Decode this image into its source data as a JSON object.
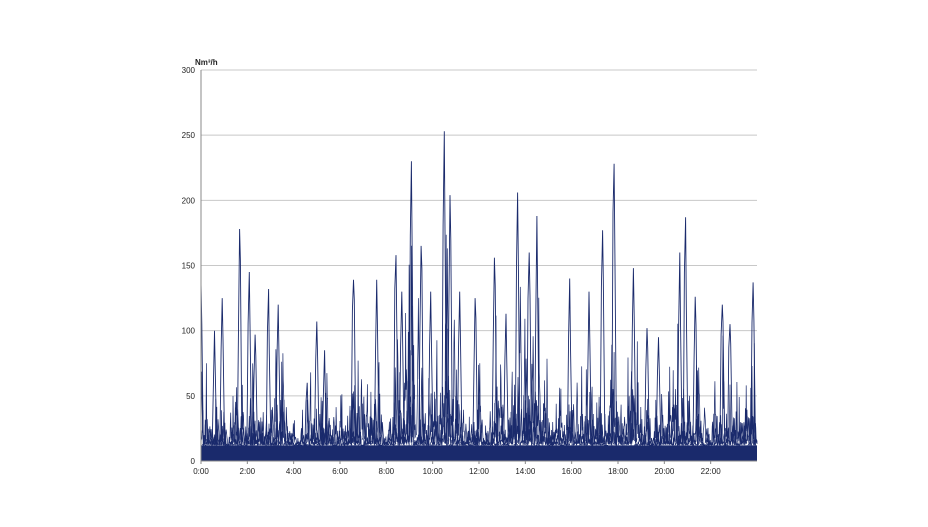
{
  "chart_data": {
    "type": "line",
    "title": "",
    "ylabel": "Nm³/h",
    "xlabel": "",
    "ylim": [
      0,
      300
    ],
    "xlim": [
      "0:00",
      "24:00"
    ],
    "y_ticks": [
      "0",
      "50",
      "100",
      "150",
      "200",
      "250",
      "300"
    ],
    "x_ticks": [
      "0:00",
      "2:00",
      "4:00",
      "6:00",
      "8:00",
      "10:00",
      "12:00",
      "14:00",
      "16:00",
      "18:00",
      "20:00",
      "22:00"
    ],
    "grid": "horizontal",
    "legend": "none",
    "line_color": "#1a2a6c",
    "baseline_band": [
      0,
      12
    ],
    "peaks": [
      {
        "x": "0:00",
        "y": 137
      },
      {
        "x": "0:35",
        "y": 100
      },
      {
        "x": "0:55",
        "y": 125
      },
      {
        "x": "1:40",
        "y": 178
      },
      {
        "x": "2:05",
        "y": 145
      },
      {
        "x": "2:20",
        "y": 97
      },
      {
        "x": "2:55",
        "y": 132
      },
      {
        "x": "3:20",
        "y": 120
      },
      {
        "x": "4:35",
        "y": 60
      },
      {
        "x": "5:00",
        "y": 107
      },
      {
        "x": "5:20",
        "y": 85
      },
      {
        "x": "6:35",
        "y": 139
      },
      {
        "x": "7:35",
        "y": 139
      },
      {
        "x": "8:25",
        "y": 158
      },
      {
        "x": "8:40",
        "y": 130
      },
      {
        "x": "9:05",
        "y": 230
      },
      {
        "x": "9:30",
        "y": 165
      },
      {
        "x": "9:55",
        "y": 130
      },
      {
        "x": "10:30",
        "y": 253
      },
      {
        "x": "10:45",
        "y": 204
      },
      {
        "x": "11:10",
        "y": 130
      },
      {
        "x": "11:50",
        "y": 125
      },
      {
        "x": "12:40",
        "y": 156
      },
      {
        "x": "13:10",
        "y": 113
      },
      {
        "x": "13:40",
        "y": 206
      },
      {
        "x": "14:10",
        "y": 160
      },
      {
        "x": "14:30",
        "y": 188
      },
      {
        "x": "15:55",
        "y": 140
      },
      {
        "x": "16:45",
        "y": 130
      },
      {
        "x": "17:20",
        "y": 177
      },
      {
        "x": "17:50",
        "y": 228
      },
      {
        "x": "18:40",
        "y": 148
      },
      {
        "x": "19:15",
        "y": 102
      },
      {
        "x": "19:45",
        "y": 95
      },
      {
        "x": "20:40",
        "y": 160
      },
      {
        "x": "20:55",
        "y": 187
      },
      {
        "x": "21:20",
        "y": 126
      },
      {
        "x": "22:30",
        "y": 120
      },
      {
        "x": "22:50",
        "y": 105
      },
      {
        "x": "23:50",
        "y": 137
      }
    ]
  }
}
